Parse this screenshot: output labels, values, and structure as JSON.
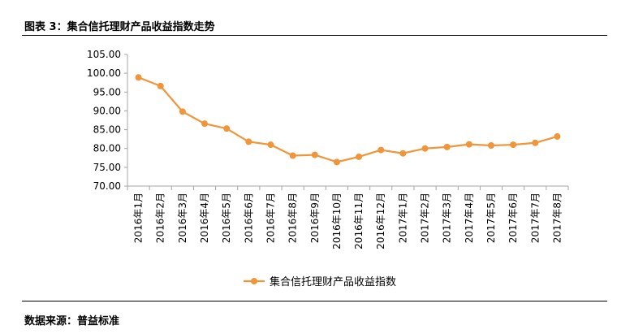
{
  "header": {
    "figure_title": "图表 3：集合信托理财产品收益指数走势"
  },
  "footer": {
    "source": "数据来源：普益标准"
  },
  "colors": {
    "series": "#f0953a",
    "axis": "#a6a6a6",
    "text": "#000000"
  },
  "chart_data": {
    "type": "line",
    "title": "",
    "xlabel": "",
    "ylabel": "",
    "ylim": [
      70,
      105
    ],
    "yticks": [
      "70.00",
      "75.00",
      "80.00",
      "85.00",
      "90.00",
      "95.00",
      "100.00",
      "105.00"
    ],
    "grid": false,
    "legend_position": "bottom-center",
    "categories": [
      "2016年1月",
      "2016年2月",
      "2016年3月",
      "2016年4月",
      "2016年5月",
      "2016年6月",
      "2016年7月",
      "2016年8月",
      "2016年9月",
      "2016年10月",
      "2016年11月",
      "2016年12月",
      "2017年1月",
      "2017年2月",
      "2017年3月",
      "2017年4月",
      "2017年5月",
      "2017年6月",
      "2017年7月",
      "2017年8月"
    ],
    "series": [
      {
        "name": "集合信托理财产品收益指数",
        "values": [
          98.9,
          96.6,
          89.8,
          86.6,
          85.3,
          81.8,
          81.0,
          78.1,
          78.3,
          76.4,
          77.8,
          79.6,
          78.7,
          80.0,
          80.4,
          81.1,
          80.8,
          81.0,
          81.5,
          83.2
        ]
      }
    ]
  }
}
